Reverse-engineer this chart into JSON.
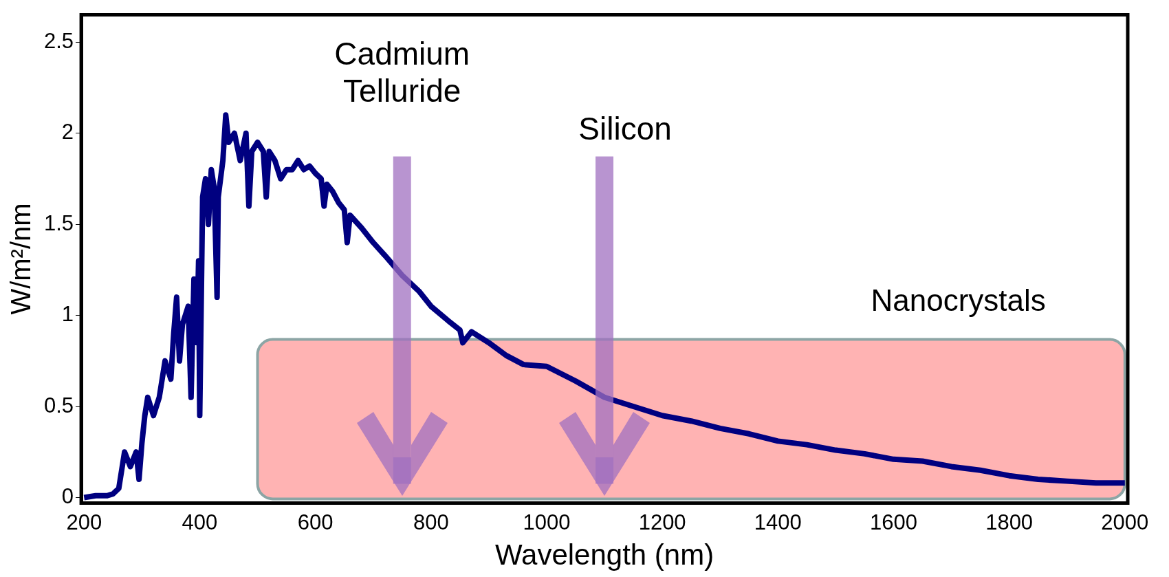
{
  "chart_data": {
    "type": "line",
    "xlabel": "Wavelength (nm)",
    "ylabel": "W/m²/nm",
    "xlim": [
      195,
      2005
    ],
    "xticks": [
      200,
      400,
      600,
      800,
      1000,
      1200,
      1400,
      1600,
      1800,
      2000
    ],
    "ylim": [
      -0.03,
      2.65
    ],
    "yticks": [
      0,
      0.5,
      1,
      1.5,
      2,
      2.5
    ],
    "grid": false,
    "legend": false,
    "x": [
      200,
      220,
      240,
      250,
      260,
      265,
      270,
      280,
      290,
      295,
      300,
      305,
      310,
      320,
      330,
      340,
      350,
      355,
      360,
      365,
      370,
      380,
      385,
      390,
      395,
      398,
      400,
      405,
      410,
      415,
      420,
      425,
      430,
      432,
      440,
      445,
      450,
      460,
      470,
      480,
      485,
      490,
      500,
      510,
      515,
      520,
      530,
      540,
      550,
      560,
      570,
      580,
      590,
      600,
      610,
      615,
      620,
      630,
      640,
      650,
      655,
      660,
      680,
      700,
      720,
      750,
      780,
      800,
      830,
      850,
      855,
      870,
      900,
      930,
      960,
      1000,
      1050,
      1100,
      1150,
      1200,
      1250,
      1300,
      1350,
      1400,
      1450,
      1500,
      1550,
      1600,
      1650,
      1700,
      1750,
      1800,
      1850,
      1900,
      1950,
      2000
    ],
    "series": [
      {
        "color": "#000080",
        "values": [
          0,
          0.01,
          0.01,
          0.02,
          0.05,
          0.15,
          0.25,
          0.17,
          0.25,
          0.1,
          0.3,
          0.45,
          0.55,
          0.45,
          0.55,
          0.75,
          0.65,
          0.9,
          1.1,
          0.75,
          0.95,
          1.05,
          0.55,
          1.2,
          0.85,
          1.3,
          0.45,
          1.65,
          1.75,
          1.5,
          1.8,
          1.7,
          1.1,
          1.65,
          1.85,
          2.1,
          1.95,
          2,
          1.85,
          2,
          1.6,
          1.9,
          1.95,
          1.9,
          1.65,
          1.9,
          1.85,
          1.75,
          1.8,
          1.8,
          1.85,
          1.8,
          1.82,
          1.78,
          1.75,
          1.6,
          1.72,
          1.68,
          1.62,
          1.58,
          1.4,
          1.55,
          1.48,
          1.4,
          1.33,
          1.22,
          1.13,
          1.05,
          0.97,
          0.92,
          0.85,
          0.91,
          0.85,
          0.78,
          0.73,
          0.72,
          0.64,
          0.55,
          0.5,
          0.45,
          0.42,
          0.38,
          0.35,
          0.31,
          0.29,
          0.26,
          0.24,
          0.21,
          0.2,
          0.17,
          0.15,
          0.12,
          0.1,
          0.09,
          0.08,
          0.08
        ]
      }
    ],
    "ref_lines": [
      {
        "axis": "x",
        "value": 750,
        "label": "Cadmium Telluride",
        "color": "#a070c0"
      },
      {
        "axis": "x",
        "value": 1100,
        "label": "Silicon",
        "color": "#a070c0"
      }
    ],
    "bands": [
      {
        "axis": "x",
        "from": 500,
        "to": 2000,
        "label": "Nanocrystals",
        "color": "#ffb3b3"
      }
    ]
  }
}
